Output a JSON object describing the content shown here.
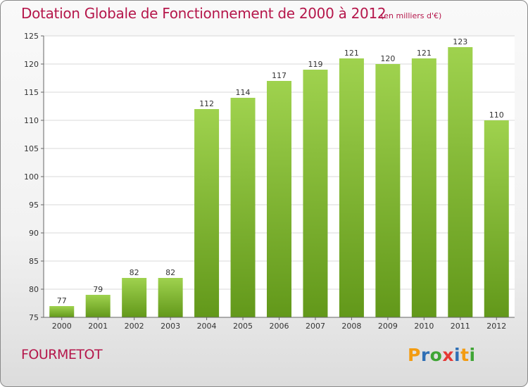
{
  "chart_data": {
    "type": "bar",
    "title": "Dotation Globale de Fonctionnement de 2000 à 2012",
    "unit_note": "(en milliers d'€)",
    "categories": [
      "2000",
      "2001",
      "2002",
      "2003",
      "2004",
      "2005",
      "2006",
      "2007",
      "2008",
      "2009",
      "2010",
      "2011",
      "2012"
    ],
    "values": [
      77,
      79,
      82,
      82,
      112,
      114,
      117,
      119,
      121,
      120,
      121,
      123,
      110
    ],
    "ylim": [
      75,
      125
    ],
    "yticks": [
      75,
      80,
      85,
      90,
      95,
      100,
      105,
      110,
      115,
      120,
      125
    ],
    "xlabel": "",
    "ylabel": "",
    "grid": true,
    "bar_color_top": "#9fd24e",
    "bar_color_bottom": "#62981a"
  },
  "commune": "FOURMETOT",
  "logo": {
    "letters": [
      "P",
      "r",
      "o",
      "x",
      "i",
      "t",
      "i"
    ],
    "colors": [
      "#f39c12",
      "#2f6fb5",
      "#3fa535",
      "#e53935",
      "#2f6fb5",
      "#f39c12",
      "#3fa535"
    ]
  },
  "colors": {
    "title": "#b5174b",
    "grid": "#d9d9d9"
  }
}
